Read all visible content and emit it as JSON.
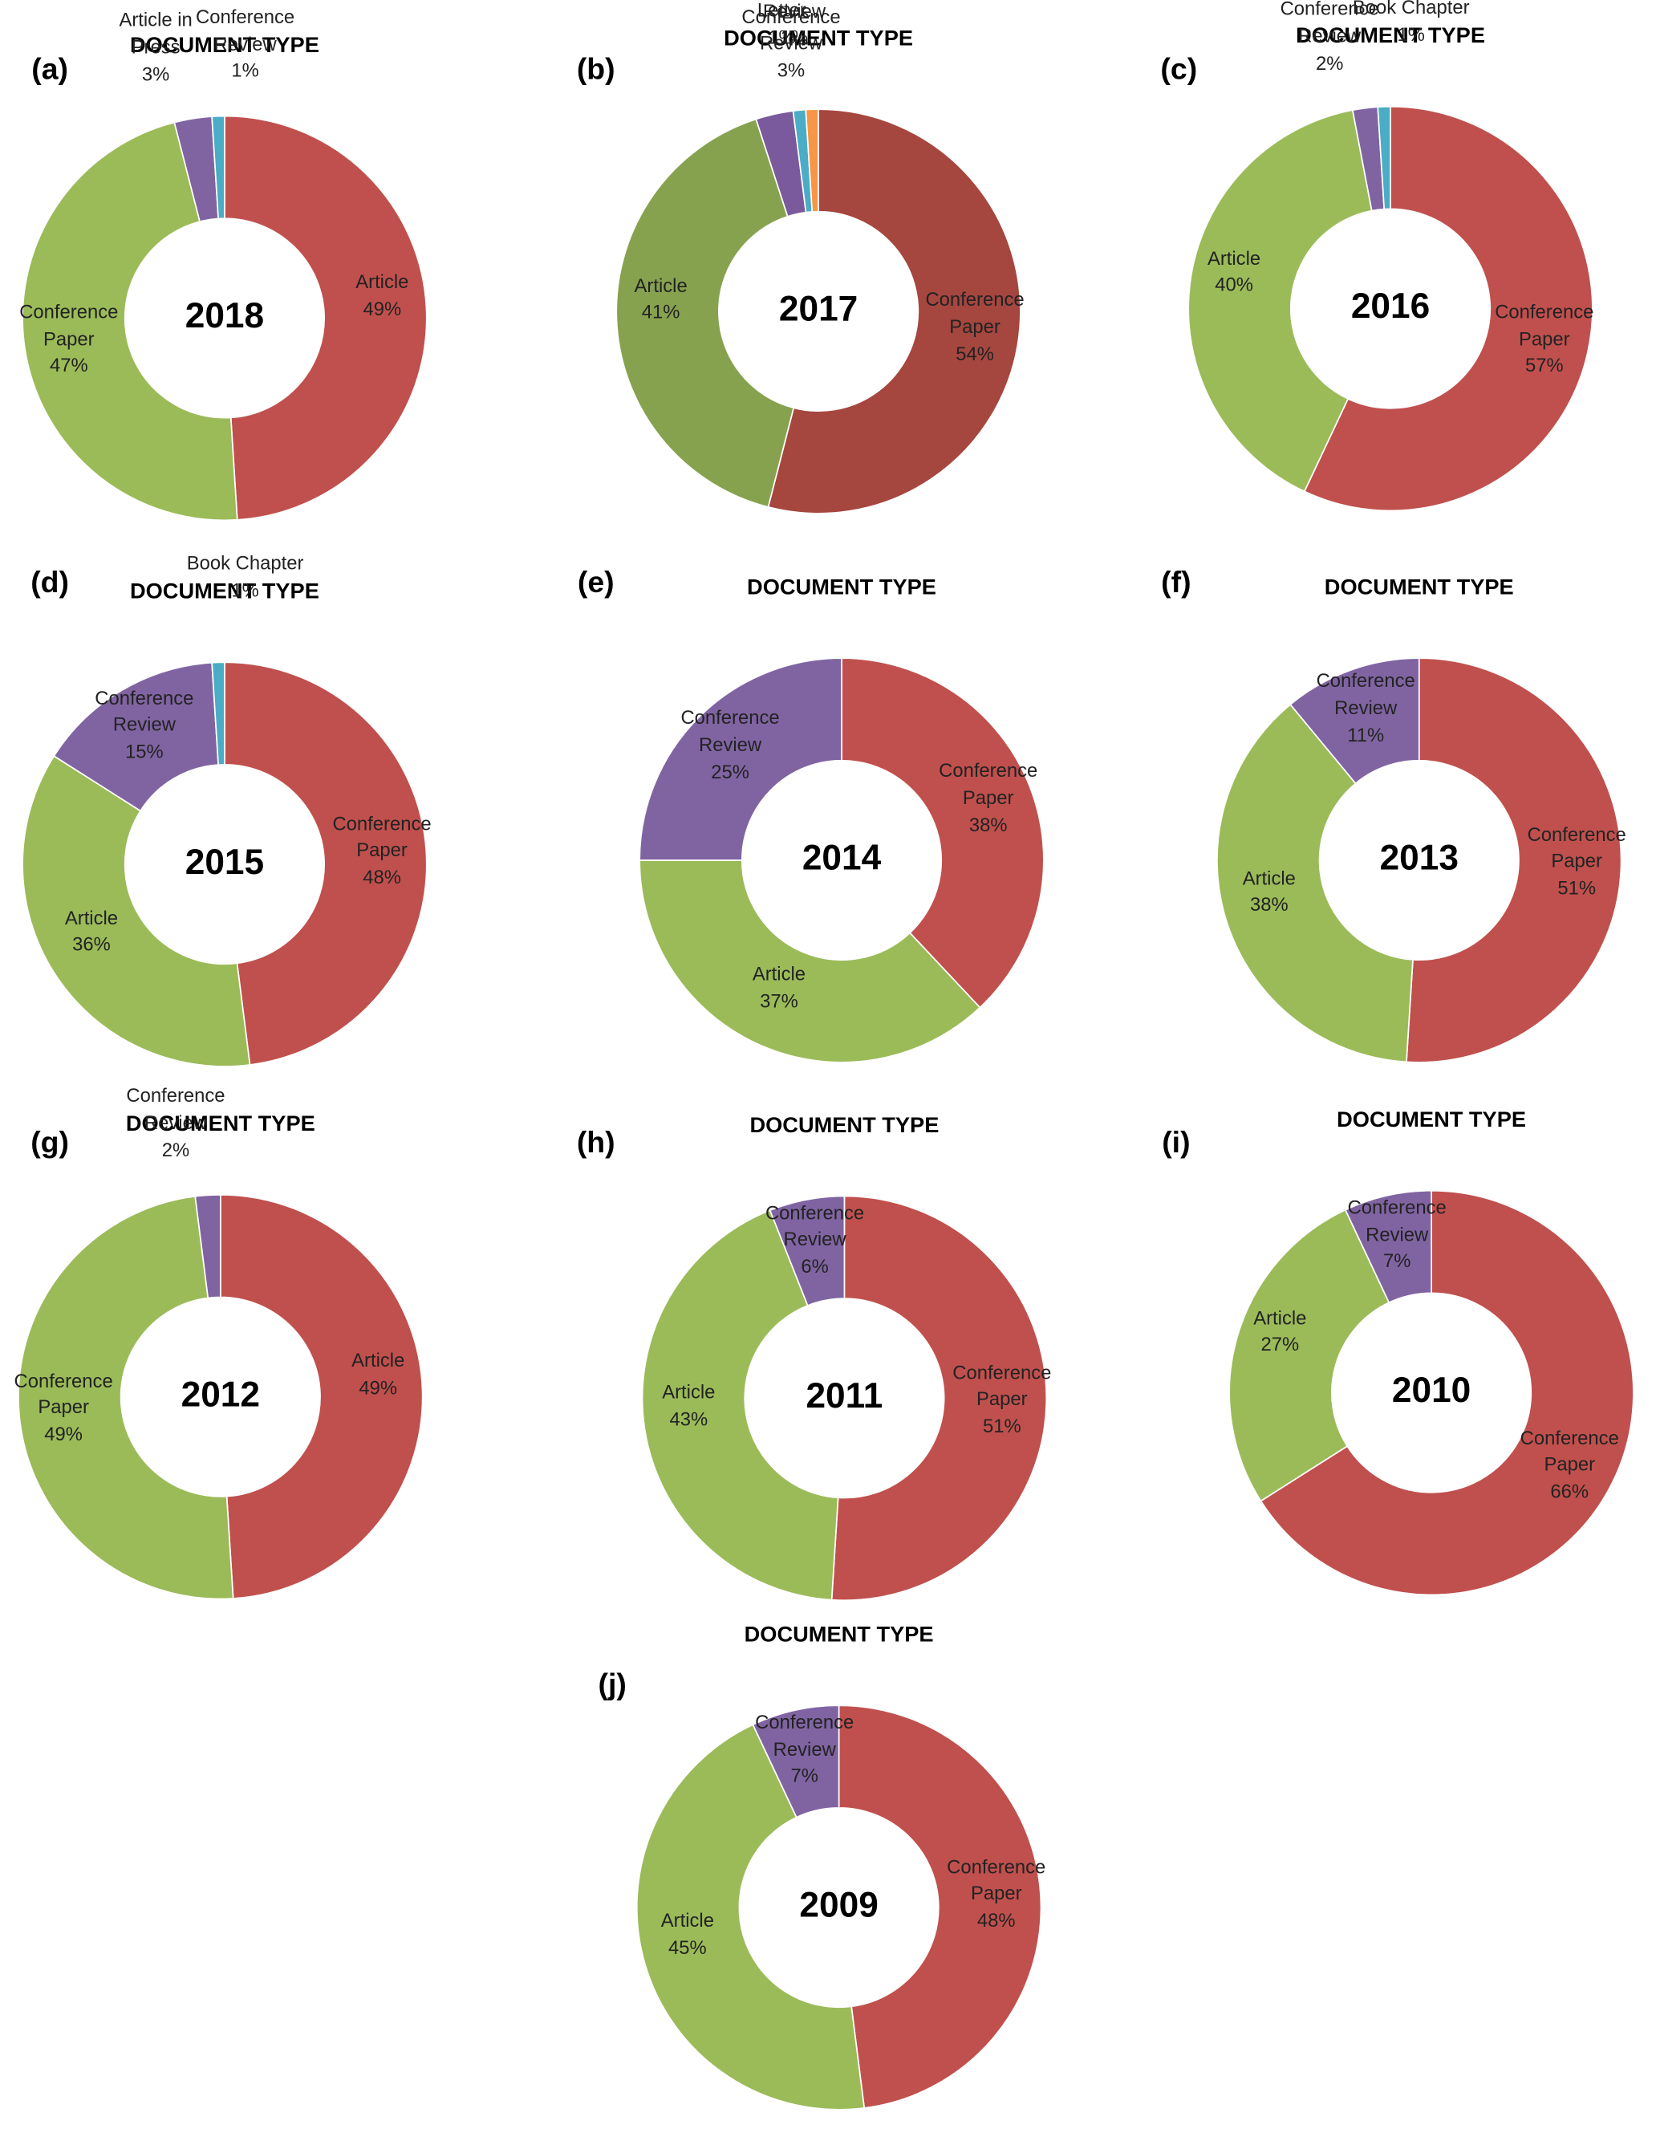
{
  "chart_data": [
    {
      "type": "donut",
      "panel": "(a)",
      "title": "DOCUMENT TYPE",
      "center_label": "2018",
      "categories": [
        "Article",
        "Conference Paper",
        "Article in Press",
        "Conference Review"
      ],
      "values": [
        49,
        47,
        3,
        1
      ],
      "value_labels": [
        "49%",
        "47%",
        "3%",
        "1%"
      ],
      "colors": [
        "#c0504d",
        "#9bbb59",
        "#8064a2",
        "#4bacc6"
      ]
    },
    {
      "type": "donut",
      "panel": "(b)",
      "title": "DOCUMENT TYPE",
      "center_label": "2017",
      "categories": [
        "Conference Paper",
        "Article",
        "Conference Review",
        "Review",
        "Letter"
      ],
      "values": [
        54,
        41,
        3,
        1,
        1
      ],
      "value_labels": [
        "54%",
        "41%",
        "3%",
        "1%",
        "1%"
      ],
      "colors": [
        "#a5463f",
        "#87a24f",
        "#7a5a9c",
        "#4bacc6",
        "#f79646"
      ]
    },
    {
      "type": "donut",
      "panel": "(c)",
      "title": "DOCUMENT TYPE",
      "center_label": "2016",
      "categories": [
        "Conference Paper",
        "Article",
        "Conference Review",
        "Book Chapter"
      ],
      "values": [
        57,
        40,
        2,
        1
      ],
      "value_labels": [
        "57%",
        "40%",
        "2%",
        "1%"
      ],
      "colors": [
        "#c0504d",
        "#9bbb59",
        "#8064a2",
        "#4bacc6"
      ]
    },
    {
      "type": "donut",
      "panel": "(d)",
      "title": "DOCUMENT TYPE",
      "center_label": "2015",
      "categories": [
        "Conference Paper",
        "Article",
        "Conference Review",
        "Book Chapter"
      ],
      "values": [
        48,
        36,
        15,
        1
      ],
      "value_labels": [
        "48%",
        "36%",
        "15%",
        "1%"
      ],
      "colors": [
        "#c0504d",
        "#9bbb59",
        "#8064a2",
        "#4bacc6"
      ]
    },
    {
      "type": "donut",
      "panel": "(e)",
      "title": "DOCUMENT TYPE",
      "center_label": "2014",
      "categories": [
        "Conference Paper",
        "Article",
        "Conference Review"
      ],
      "values": [
        38,
        37,
        25
      ],
      "value_labels": [
        "38%",
        "37%",
        "25%"
      ],
      "colors": [
        "#c0504d",
        "#9bbb59",
        "#8064a2"
      ]
    },
    {
      "type": "donut",
      "panel": "(f)",
      "title": "DOCUMENT TYPE",
      "center_label": "2013",
      "categories": [
        "Conference Paper",
        "Article",
        "Conference Review"
      ],
      "values": [
        51,
        38,
        11
      ],
      "value_labels": [
        "51%",
        "38%",
        "11%"
      ],
      "colors": [
        "#c0504d",
        "#9bbb59",
        "#8064a2"
      ]
    },
    {
      "type": "donut",
      "panel": "(g)",
      "title": "DOCUMENT TYPE",
      "center_label": "2012",
      "categories": [
        "Article",
        "Conference Paper",
        "Conference Review"
      ],
      "values": [
        49,
        49,
        2
      ],
      "value_labels": [
        "49%",
        "49%",
        "2%"
      ],
      "colors": [
        "#c0504d",
        "#9bbb59",
        "#8064a2"
      ]
    },
    {
      "type": "donut",
      "panel": "(h)",
      "title": "DOCUMENT TYPE",
      "center_label": "2011",
      "categories": [
        "Conference Paper",
        "Article",
        "Conference Review"
      ],
      "values": [
        51,
        43,
        6
      ],
      "value_labels": [
        "51%",
        "43%",
        "6%"
      ],
      "colors": [
        "#c0504d",
        "#9bbb59",
        "#8064a2"
      ]
    },
    {
      "type": "donut",
      "panel": "(i)",
      "title": "DOCUMENT TYPE",
      "center_label": "2010",
      "categories": [
        "Conference Paper",
        "Article",
        "Conference Review"
      ],
      "values": [
        66,
        27,
        7
      ],
      "value_labels": [
        "66%",
        "27%",
        "7%"
      ],
      "colors": [
        "#c0504d",
        "#9bbb59",
        "#8064a2"
      ]
    },
    {
      "type": "donut",
      "panel": "(j)",
      "title": "DOCUMENT TYPE",
      "center_label": "2009",
      "categories": [
        "Conference Paper",
        "Article",
        "Conference Review"
      ],
      "values": [
        48,
        45,
        7
      ],
      "value_labels": [
        "48%",
        "45%",
        "7%"
      ],
      "colors": [
        "#c0504d",
        "#9bbb59",
        "#8064a2"
      ]
    }
  ]
}
